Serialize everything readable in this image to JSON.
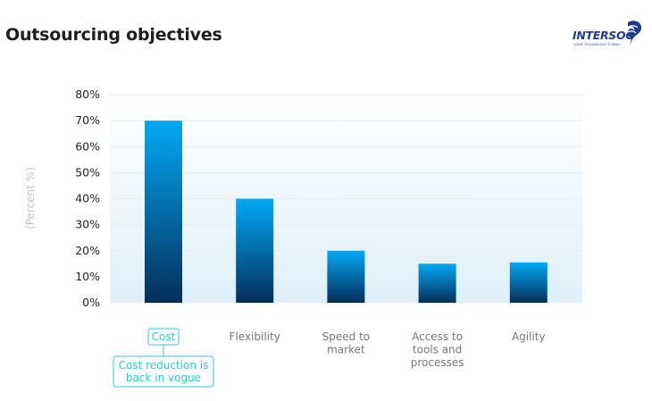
{
  "header": {
    "title": "Outsourcing objectives",
    "logo_text": "INTERSOG",
    "logo_tagline": "YOUR TECHNOLOGY'S MIND"
  },
  "colors": {
    "bar_top": "#03a9f4",
    "bar_bottom": "#052e5a",
    "plot_bg_top": "#ffffff",
    "plot_bg_bottom": "#dff0fb",
    "annotation": "#34c7d6",
    "label": "#777777",
    "logo": "#1f3d8c"
  },
  "chart_data": {
    "type": "bar",
    "title": "Outsourcing objectives",
    "ylabel": "(Percent %)",
    "xlabel": "",
    "ylim": [
      0,
      80
    ],
    "yticks": [
      0,
      10,
      20,
      30,
      40,
      50,
      60,
      70,
      80
    ],
    "ytick_labels": [
      "0%",
      "10%",
      "20%",
      "30%",
      "40%",
      "50%",
      "60%",
      "70%",
      "80%"
    ],
    "grid": true,
    "categories": [
      [
        "Cost"
      ],
      [
        "Flexibility"
      ],
      [
        "Speed to",
        "market"
      ],
      [
        "Access to",
        "tools and",
        "processes"
      ],
      [
        "Agility"
      ]
    ],
    "values": [
      70,
      40,
      20,
      15,
      15.5
    ],
    "annotations": [
      {
        "category_index": 0,
        "lines": [
          "Cost reduction is",
          "back in vogue"
        ],
        "boxed_category_label": true
      }
    ]
  }
}
